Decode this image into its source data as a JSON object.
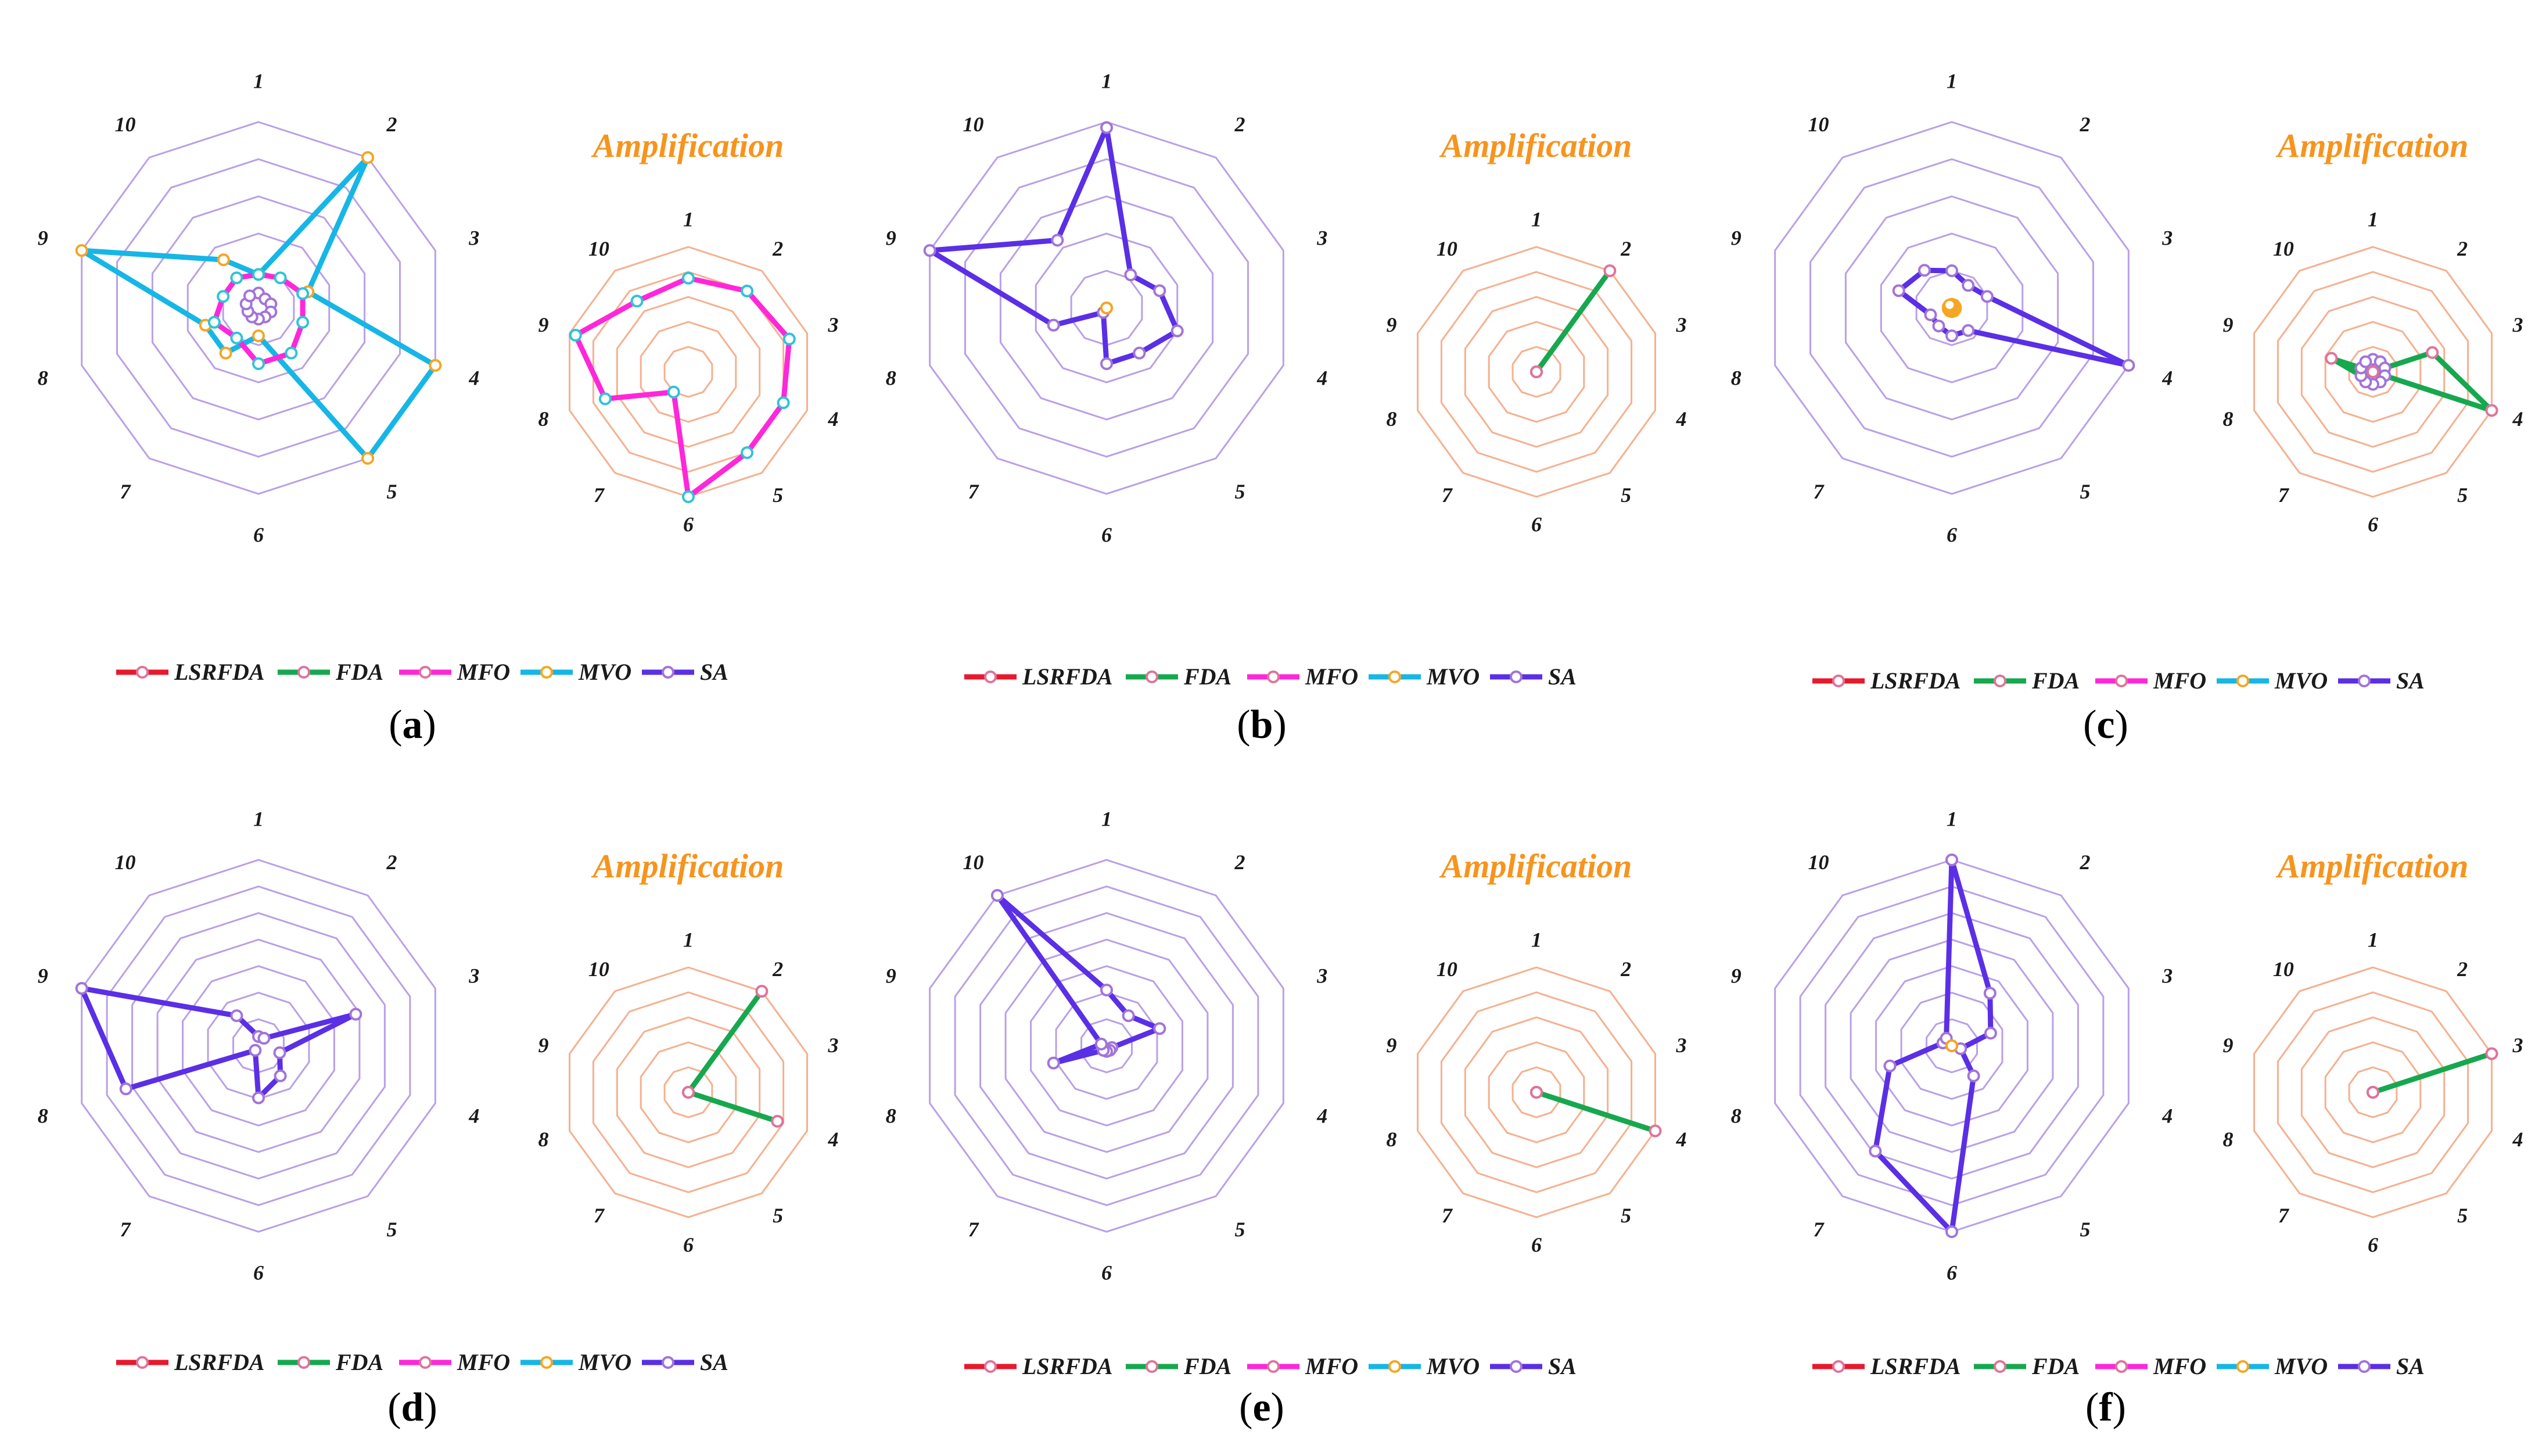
{
  "colors": {
    "main_grid": "#b9a0e6",
    "amp_grid": "#f5b08f",
    "LSRFDA": "#e8192c",
    "FDA": "#16a84f",
    "MFO": "#ff27d9",
    "MVO": "#16b6e6",
    "SA": "#5a2fe6",
    "marker_fill": "#ffffff",
    "title": "#f7941d"
  },
  "legend": [
    {
      "name": "LSRFDA",
      "marker": "#e0739a"
    },
    {
      "name": "FDA",
      "marker": "#e0739a"
    },
    {
      "name": "MFO",
      "marker": "#e0739a"
    },
    {
      "name": "MVO",
      "marker": "#f5a623"
    },
    {
      "name": "SA",
      "marker": "#a274d8"
    }
  ],
  "amplification_title": "Amplification",
  "chart_data": [
    {
      "panel": "(a)",
      "letter": "a",
      "type": "radar",
      "axes": [
        "1",
        "2",
        "3",
        "4",
        "5",
        "6",
        "7",
        "8",
        "9",
        "10"
      ],
      "rings": 5,
      "rmax": 1,
      "main_series": [
        {
          "name": "MVO",
          "values": [
            0.18,
            1.0,
            0.28,
            1.0,
            1.0,
            0.15,
            0.3,
            0.3,
            1.0,
            0.32
          ]
        },
        {
          "name": "MFO",
          "values": [
            0.18,
            0.2,
            0.25,
            0.25,
            0.3,
            0.3,
            0.2,
            0.25,
            0.2,
            0.2
          ]
        },
        {
          "name": "SA",
          "values": [
            0.08,
            0.06,
            0.07,
            0.07,
            0.06,
            0.06,
            0.06,
            0.06,
            0.07,
            0.08
          ]
        }
      ],
      "amp_series": [
        {
          "name": "MFO",
          "values": [
            0.75,
            0.8,
            0.85,
            0.8,
            0.8,
            1.0,
            0.2,
            0.7,
            0.95,
            0.7
          ]
        }
      ]
    },
    {
      "panel": "(b)",
      "letter": "b",
      "type": "radar",
      "axes": [
        "1",
        "2",
        "3",
        "4",
        "5",
        "6",
        "7",
        "8",
        "9",
        "10"
      ],
      "rings": 5,
      "rmax": 1,
      "main_series": [
        {
          "name": "SA",
          "values": [
            0.97,
            0.22,
            0.3,
            0.4,
            0.3,
            0.3,
            0.03,
            0.3,
            1.0,
            0.45
          ]
        },
        {
          "name": "MVO",
          "values": [
            0.0,
            0.0,
            0.0,
            0.0,
            0.0,
            0.0,
            0.0,
            0.0,
            0.0,
            0.0
          ]
        }
      ],
      "amp_series": [
        {
          "name": "FDA",
          "values": [
            0.0,
            1.0,
            0.0,
            0.0,
            0.0,
            0.0,
            0.0,
            0.0,
            0.0,
            0.0
          ]
        }
      ]
    },
    {
      "panel": "(c)",
      "letter": "c",
      "type": "radar",
      "axes": [
        "1",
        "2",
        "3",
        "4",
        "5",
        "6",
        "7",
        "8",
        "9",
        "10"
      ],
      "rings": 5,
      "rmax": 1,
      "main_series": [
        {
          "name": "SA",
          "values": [
            0.2,
            0.15,
            0.2,
            1.0,
            0.15,
            0.15,
            0.12,
            0.12,
            0.3,
            0.25
          ]
        },
        {
          "name": "MVO",
          "values": [
            0.02,
            0.02,
            0.02,
            0.02,
            0.02,
            0.02,
            0.02,
            0.02,
            0.02,
            0.02
          ]
        }
      ],
      "amp_series": [
        {
          "name": "FDA",
          "values": [
            0.0,
            0.0,
            0.5,
            1.0,
            0.0,
            0.0,
            0.0,
            0.1,
            0.35,
            0.0
          ]
        },
        {
          "name": "SA",
          "values": [
            0.1,
            0.1,
            0.1,
            0.1,
            0.1,
            0.1,
            0.1,
            0.1,
            0.1,
            0.1
          ]
        }
      ]
    },
    {
      "panel": "(d)",
      "letter": "d",
      "type": "radar",
      "axes": [
        "1",
        "2",
        "3",
        "4",
        "5",
        "6",
        "7",
        "8",
        "9",
        "10"
      ],
      "rings": 7,
      "rmax": 1,
      "main_series": [
        {
          "name": "SA",
          "values": [
            0.05,
            0.05,
            0.55,
            0.12,
            0.2,
            0.28,
            0.03,
            0.75,
            1.0,
            0.2
          ]
        }
      ],
      "amp_series": [
        {
          "name": "FDA",
          "values": [
            0.0,
            1.0,
            0.0,
            0.75,
            0.0,
            0.0,
            0.0,
            0.0,
            0.0,
            0.0
          ]
        }
      ]
    },
    {
      "panel": "(e)",
      "letter": "e",
      "type": "radar",
      "axes": [
        "1",
        "2",
        "3",
        "4",
        "5",
        "6",
        "7",
        "8",
        "9",
        "10"
      ],
      "rings": 7,
      "rmax": 1,
      "main_series": [
        {
          "name": "SA",
          "values": [
            0.3,
            0.2,
            0.3,
            0.03,
            0.03,
            0.03,
            0.03,
            0.3,
            0.03,
            1.0
          ]
        }
      ],
      "amp_series": [
        {
          "name": "FDA",
          "values": [
            0.0,
            0.0,
            0.0,
            1.0,
            0.0,
            0.0,
            0.0,
            0.0,
            0.0,
            0.0
          ]
        }
      ]
    },
    {
      "panel": "(f)",
      "letter": "f",
      "type": "radar",
      "axes": [
        "1",
        "2",
        "3",
        "4",
        "5",
        "6",
        "7",
        "8",
        "9",
        "10"
      ],
      "rings": 7,
      "rmax": 1,
      "main_series": [
        {
          "name": "SA",
          "values": [
            1.0,
            0.35,
            0.22,
            0.05,
            0.2,
            1.0,
            0.7,
            0.35,
            0.05,
            0.05
          ]
        },
        {
          "name": "MVO",
          "values": [
            0.0,
            0.0,
            0.0,
            0.0,
            0.0,
            0.0,
            0.0,
            0.0,
            0.0,
            0.0
          ]
        }
      ],
      "amp_series": [
        {
          "name": "FDA",
          "values": [
            0.0,
            0.0,
            1.0,
            0.0,
            0.0,
            0.0,
            0.0,
            0.0,
            0.0,
            0.0
          ]
        }
      ]
    }
  ]
}
